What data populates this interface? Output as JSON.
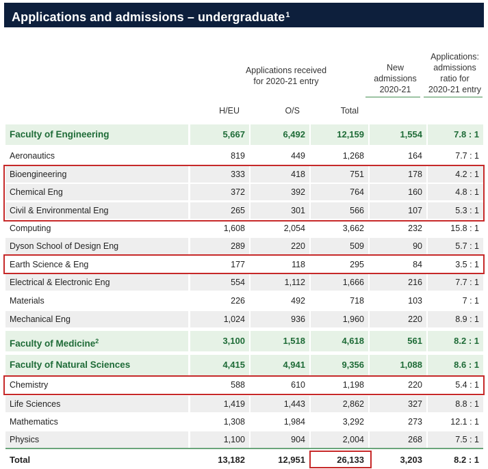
{
  "title": {
    "text": "Applications and admissions – undergraduate",
    "sup": "1"
  },
  "headers": {
    "received_group": [
      "Applications received",
      "for 2020-21 entry"
    ],
    "heu": "H/EU",
    "os": "O/S",
    "total": "Total",
    "new_admissions": [
      "New",
      "admissions",
      "2020-21"
    ],
    "ratio": [
      "Applications:",
      "admissions",
      "ratio for",
      "2020-21 entry"
    ]
  },
  "rows": [
    {
      "name": "Faculty of Engineering",
      "sup": "",
      "heu": "5,667",
      "os": "6,492",
      "total": "12,159",
      "new": "1,554",
      "ratio": "7.8 : 1"
    },
    {
      "name": "Aeronautics",
      "heu": "819",
      "os": "449",
      "total": "1,268",
      "new": "164",
      "ratio": "7.7 : 1"
    },
    {
      "name": "Bioengineering",
      "heu": "333",
      "os": "418",
      "total": "751",
      "new": "178",
      "ratio": "4.2 : 1"
    },
    {
      "name": "Chemical Eng",
      "heu": "372",
      "os": "392",
      "total": "764",
      "new": "160",
      "ratio": "4.8 : 1"
    },
    {
      "name": "Civil & Environmental Eng",
      "heu": "265",
      "os": "301",
      "total": "566",
      "new": "107",
      "ratio": "5.3 : 1"
    },
    {
      "name": "Computing",
      "heu": "1,608",
      "os": "2,054",
      "total": "3,662",
      "new": "232",
      "ratio": "15.8 : 1"
    },
    {
      "name": "Dyson School of Design Eng",
      "heu": "289",
      "os": "220",
      "total": "509",
      "new": "90",
      "ratio": "5.7 : 1"
    },
    {
      "name": "Earth Science & Eng",
      "heu": "177",
      "os": "118",
      "total": "295",
      "new": "84",
      "ratio": "3.5 : 1"
    },
    {
      "name": "Electrical & Electronic Eng",
      "heu": "554",
      "os": "1,112",
      "total": "1,666",
      "new": "216",
      "ratio": "7.7 : 1"
    },
    {
      "name": "Materials",
      "heu": "226",
      "os": "492",
      "total": "718",
      "new": "103",
      "ratio": "7 : 1"
    },
    {
      "name": "Mechanical Eng",
      "heu": "1,024",
      "os": "936",
      "total": "1,960",
      "new": "220",
      "ratio": "8.9 : 1"
    },
    {
      "name": "Faculty of Medicine",
      "sup": "2",
      "heu": "3,100",
      "os": "1,518",
      "total": "4,618",
      "new": "561",
      "ratio": "8.2 : 1"
    },
    {
      "name": "Faculty of Natural Sciences",
      "sup": "",
      "heu": "4,415",
      "os": "4,941",
      "total": "9,356",
      "new": "1,088",
      "ratio": "8.6 : 1"
    },
    {
      "name": "Chemistry",
      "heu": "588",
      "os": "610",
      "total": "1,198",
      "new": "220",
      "ratio": "5.4 : 1"
    },
    {
      "name": "Life Sciences",
      "heu": "1,419",
      "os": "1,443",
      "total": "2,862",
      "new": "327",
      "ratio": "8.8 : 1"
    },
    {
      "name": "Mathematics",
      "heu": "1,308",
      "os": "1,984",
      "total": "3,292",
      "new": "273",
      "ratio": "12.1 : 1"
    },
    {
      "name": "Physics",
      "heu": "1,100",
      "os": "904",
      "total": "2,004",
      "new": "268",
      "ratio": "7.5 : 1"
    },
    {
      "name": "Total",
      "heu": "13,182",
      "os": "12,951",
      "total": "26,133",
      "new": "3,203",
      "ratio": "8.2 : 1"
    }
  ]
}
